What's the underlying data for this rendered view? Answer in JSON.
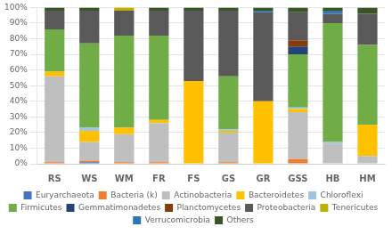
{
  "chart_data": {
    "type": "bar",
    "stacked": true,
    "grid": true,
    "legend": "bottom",
    "categories": [
      "RS",
      "WS",
      "WM",
      "FR",
      "FS",
      "GS",
      "GR",
      "GSS",
      "HB",
      "HM"
    ],
    "series": [
      {
        "name": "Euryarchaeota",
        "color": "#4472C4",
        "values": [
          0.0,
          0.01,
          0.0,
          0.0,
          0.0,
          0.0,
          0.0,
          0.0,
          0.0,
          0.0
        ]
      },
      {
        "name": "Bacteria (k)",
        "color": "#ED7D31",
        "values": [
          0.01,
          0.01,
          0.01,
          0.01,
          0.0,
          0.01,
          0.0,
          0.03,
          0.0,
          0.0
        ]
      },
      {
        "name": "Actinobacteria",
        "color": "#BFBFBF",
        "values": [
          0.55,
          0.12,
          0.18,
          0.25,
          0.0,
          0.19,
          0.0,
          0.3,
          0.13,
          0.05
        ]
      },
      {
        "name": "Bacteroidetes",
        "color": "#FFC000",
        "values": [
          0.03,
          0.07,
          0.04,
          0.02,
          0.53,
          0.01,
          0.4,
          0.02,
          0.0,
          0.2
        ]
      },
      {
        "name": "Chloroflexi",
        "color": "#9DC3E6",
        "values": [
          0.0,
          0.02,
          0.0,
          0.0,
          0.0,
          0.01,
          0.0,
          0.01,
          0.01,
          0.0
        ]
      },
      {
        "name": "Firmicutes",
        "color": "#70AD47",
        "values": [
          0.27,
          0.54,
          0.59,
          0.54,
          0.0,
          0.34,
          0.0,
          0.34,
          0.76,
          0.51
        ]
      },
      {
        "name": "Gemmatimonadetes",
        "color": "#264478",
        "values": [
          0.0,
          0.0,
          0.0,
          0.0,
          0.0,
          0.0,
          0.0,
          0.05,
          0.0,
          0.0
        ]
      },
      {
        "name": "Planctomycetes",
        "color": "#843C0C",
        "values": [
          0.0,
          0.0,
          0.0,
          0.0,
          0.0,
          0.0,
          0.0,
          0.04,
          0.0,
          0.0
        ]
      },
      {
        "name": "Proteobacteria",
        "color": "#595959",
        "values": [
          0.12,
          0.21,
          0.16,
          0.16,
          0.45,
          0.42,
          0.57,
          0.18,
          0.06,
          0.2
        ]
      },
      {
        "name": "Tenericutes",
        "color": "#C0B000",
        "values": [
          0.0,
          0.0,
          0.02,
          0.0,
          0.0,
          0.0,
          0.0,
          0.0,
          0.0,
          0.0
        ]
      },
      {
        "name": "Verrucomicrobia",
        "color": "#2E75B6",
        "values": [
          0.0,
          0.0,
          0.0,
          0.0,
          0.0,
          0.0,
          0.01,
          0.0,
          0.02,
          0.0
        ]
      },
      {
        "name": "Others",
        "color": "#375623",
        "values": [
          0.02,
          0.02,
          0.0,
          0.02,
          0.02,
          0.02,
          0.02,
          0.03,
          0.02,
          0.04
        ]
      }
    ],
    "ylim": [
      0,
      1.0
    ],
    "yticks": [
      {
        "value": 0.0,
        "label": "0%"
      },
      {
        "value": 0.1,
        "label": "10%"
      },
      {
        "value": 0.2,
        "label": "20%"
      },
      {
        "value": 0.3,
        "label": "30%"
      },
      {
        "value": 0.4,
        "label": "40%"
      },
      {
        "value": 0.5,
        "label": "50%"
      },
      {
        "value": 0.6,
        "label": "60%"
      },
      {
        "value": 0.7,
        "label": "70%"
      },
      {
        "value": 0.8,
        "label": "80%"
      },
      {
        "value": 0.9,
        "label": "90%"
      },
      {
        "value": 1.0,
        "label": "100%"
      }
    ]
  }
}
